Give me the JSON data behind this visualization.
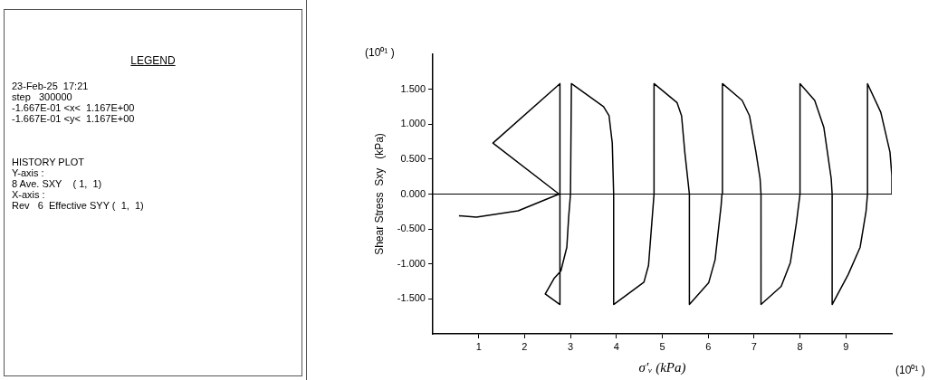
{
  "chart_data": {
    "type": "line",
    "xlabel": "σ′ᵥ (kPa)",
    "ylabel": "Shear Stress  Sxy   (kPa)",
    "annotations": [
      "LEGEND",
      "23-Feb-25  17:21",
      "step   300000",
      "-1.667E-01 <x<  1.167E+00",
      "-1.667E-01 <y<  1.167E+00",
      "HISTORY PLOT",
      "Y-axis :",
      "8 Ave. SXY    ( 1,  1)",
      "X-axis :",
      "Rev   6  Effective SYY (  1,  1)",
      "(10⁰¹ )",
      "(10⁰¹ )"
    ],
    "series": [
      {
        "color": "#000000",
        "x": [
          0.57,
          0.95,
          1.86,
          2.75,
          1.31,
          2.77,
          2.77,
          2.45,
          2.65,
          2.79,
          2.92,
          2.96,
          3.0,
          3.02,
          3.72,
          3.84,
          3.91,
          3.94,
          3.94,
          4.6,
          4.7,
          4.8,
          4.82,
          4.82,
          5.32,
          5.42,
          5.49,
          5.59,
          5.59,
          6.01,
          6.15,
          6.28,
          6.3,
          6.31,
          6.74,
          6.9,
          7.04,
          7.13,
          7.15,
          7.15,
          7.59,
          7.79,
          7.92,
          8.0,
          8.0,
          8.32,
          8.52,
          8.68,
          8.7,
          8.7,
          9.05,
          9.31,
          9.44,
          9.47,
          9.47,
          9.76,
          9.96,
          10.0,
          10.0
        ],
        "values": [
          -0.31,
          -0.33,
          -0.24,
          0,
          0.73,
          1.58,
          -1.58,
          -1.43,
          -1.2,
          -1.1,
          -0.76,
          -0.33,
          0,
          1.58,
          1.25,
          1.12,
          0.73,
          0,
          -1.58,
          -1.26,
          -1.02,
          -0.17,
          0,
          1.58,
          1.31,
          1.12,
          0.6,
          0,
          -1.58,
          -1.27,
          -0.94,
          -0.17,
          0,
          1.58,
          1.34,
          1.12,
          0.6,
          0.22,
          0,
          -1.58,
          -1.32,
          -0.98,
          -0.42,
          0,
          1.58,
          1.34,
          0.95,
          0.22,
          0,
          -1.58,
          -1.15,
          -0.76,
          -0.24,
          0,
          1.58,
          1.17,
          0.6,
          0.27,
          0
        ]
      }
    ],
    "xlim": [
      0,
      10
    ],
    "xticks": [
      1,
      2,
      3,
      4,
      5,
      6,
      7,
      8,
      9
    ],
    "ylim": [
      -2,
      2
    ],
    "yticks": [
      {
        "value": -1.5,
        "label": "-1.500"
      },
      {
        "value": -1,
        "label": "-1.000"
      },
      {
        "value": -0.5,
        "label": "-0.500"
      },
      {
        "value": 0,
        "label": "0.000"
      },
      {
        "value": 0.5,
        "label": "0.500"
      },
      {
        "value": 1,
        "label": "1.000"
      },
      {
        "value": 1.5,
        "label": "1.500"
      }
    ],
    "ref_lines": [
      {
        "axis": "y",
        "value": 0,
        "color": "#000000"
      }
    ],
    "grid": false,
    "legend": false,
    "marker": "none",
    "line_style": "solid"
  }
}
